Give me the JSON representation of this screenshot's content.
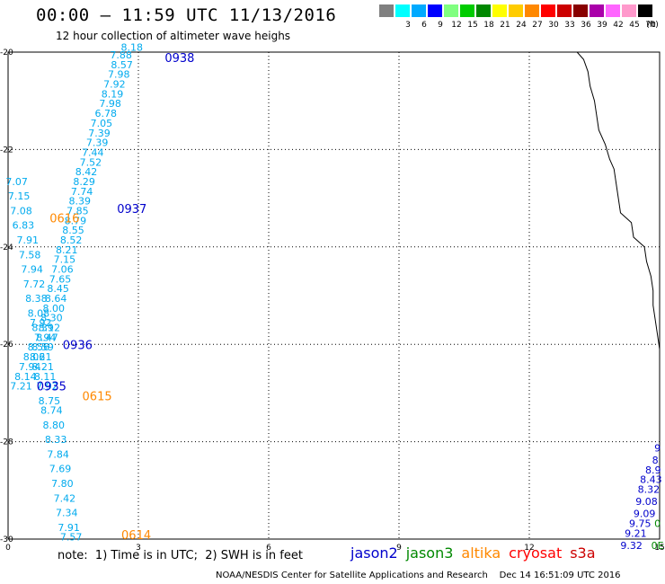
{
  "title": "00:00 — 11:59 UTC 11/13/2016",
  "subtitle": "12 hour collection of altimeter wave heighs",
  "scale": {
    "colors": [
      "#808080",
      "#00ffff",
      "#00aaff",
      "#0000ff",
      "#80ff80",
      "#00cc00",
      "#008800",
      "#ffff00",
      "#ffcc00",
      "#ff8800",
      "#ff0000",
      "#cc0000",
      "#880000",
      "#aa00aa",
      "#ff66ff",
      "#ff99cc",
      "#000000"
    ],
    "labels": [
      "",
      "3",
      "6",
      "9",
      "12",
      "15",
      "18",
      "21",
      "24",
      "27",
      "30",
      "33",
      "36",
      "39",
      "42",
      "45",
      "70"
    ],
    "unit": "(ft)"
  },
  "axes": {
    "x_ticks": [
      "0",
      "3",
      "6",
      "9",
      "12",
      "15"
    ],
    "y_ticks": [
      "-20",
      "-22",
      "-24",
      "-26",
      "-28",
      "-30"
    ]
  },
  "colors": {
    "jason2": "#0000cc",
    "jason3": "#008800",
    "altika": "#ff8800",
    "cryosat": "#ff0000",
    "s3a": "#cc0000",
    "swh": "#00aaee"
  },
  "swh_values": [
    {
      "x": 2.85,
      "y": -19.97,
      "v": "8.18"
    },
    {
      "x": 2.6,
      "y": -20.13,
      "v": "7.88"
    },
    {
      "x": 2.62,
      "y": -20.33,
      "v": "8.57"
    },
    {
      "x": 2.55,
      "y": -20.53,
      "v": "7.98"
    },
    {
      "x": 2.45,
      "y": -20.73,
      "v": "7.92"
    },
    {
      "x": 2.4,
      "y": -20.93,
      "v": "8.19"
    },
    {
      "x": 2.35,
      "y": -21.13,
      "v": "7.98"
    },
    {
      "x": 2.25,
      "y": -21.33,
      "v": "6.78"
    },
    {
      "x": 2.15,
      "y": -21.53,
      "v": "7.05"
    },
    {
      "x": 2.1,
      "y": -21.73,
      "v": "7.39"
    },
    {
      "x": 2.05,
      "y": -21.93,
      "v": "7.39"
    },
    {
      "x": 1.95,
      "y": -22.13,
      "v": "7.44"
    },
    {
      "x": 1.9,
      "y": -22.33,
      "v": "7.52"
    },
    {
      "x": 1.8,
      "y": -22.53,
      "v": "8.42"
    },
    {
      "x": 1.75,
      "y": -22.73,
      "v": "8.29"
    },
    {
      "x": 1.7,
      "y": -22.93,
      "v": "7.74"
    },
    {
      "x": 1.65,
      "y": -23.13,
      "v": "8.39"
    },
    {
      "x": 1.6,
      "y": -23.33,
      "v": "7.85"
    },
    {
      "x": 1.55,
      "y": -23.53,
      "v": "8.79"
    },
    {
      "x": 1.5,
      "y": -23.73,
      "v": "8.55"
    },
    {
      "x": 1.45,
      "y": -23.93,
      "v": "8.52"
    },
    {
      "x": 1.35,
      "y": -24.13,
      "v": "8.21"
    },
    {
      "x": 1.3,
      "y": -24.33,
      "v": "7.15"
    },
    {
      "x": 1.25,
      "y": -24.53,
      "v": "7.06"
    },
    {
      "x": 1.2,
      "y": -24.73,
      "v": "7.65"
    },
    {
      "x": 1.15,
      "y": -24.93,
      "v": "8.45"
    },
    {
      "x": 1.1,
      "y": -25.13,
      "v": "8.64"
    },
    {
      "x": 1.05,
      "y": -25.33,
      "v": "8.00"
    },
    {
      "x": 1.0,
      "y": -25.53,
      "v": "8.30"
    },
    {
      "x": 0.95,
      "y": -25.73,
      "v": "8.12"
    },
    {
      "x": 0.9,
      "y": -25.93,
      "v": "8.47"
    },
    {
      "x": 0.8,
      "y": -26.13,
      "v": "8.59"
    },
    {
      "x": 0.75,
      "y": -26.33,
      "v": "8.21"
    },
    {
      "x": 0.8,
      "y": -26.53,
      "v": "8.21"
    },
    {
      "x": 0.85,
      "y": -26.73,
      "v": "8.11"
    },
    {
      "x": 0.9,
      "y": -26.93,
      "v": "7.92"
    },
    {
      "x": 0.95,
      "y": -27.23,
      "v": "8.75"
    },
    {
      "x": 1.0,
      "y": -27.43,
      "v": "8.74"
    },
    {
      "x": 1.05,
      "y": -27.73,
      "v": "8.80"
    },
    {
      "x": 1.1,
      "y": -28.03,
      "v": "8.33"
    },
    {
      "x": 1.15,
      "y": -28.33,
      "v": "7.84"
    },
    {
      "x": 1.2,
      "y": -28.63,
      "v": "7.69"
    },
    {
      "x": 1.25,
      "y": -28.93,
      "v": "7.80"
    },
    {
      "x": 1.3,
      "y": -29.23,
      "v": "7.42"
    },
    {
      "x": 1.35,
      "y": -29.53,
      "v": "7.34"
    },
    {
      "x": 1.4,
      "y": -29.83,
      "v": "7.91"
    },
    {
      "x": 1.45,
      "y": -30.03,
      "v": "7.57"
    },
    {
      "x": 0.2,
      "y": -22.73,
      "v": "7.07"
    },
    {
      "x": 0.25,
      "y": -23.03,
      "v": "7.15"
    },
    {
      "x": 0.3,
      "y": -23.33,
      "v": "7.08"
    },
    {
      "x": 0.35,
      "y": -23.63,
      "v": "6.83"
    },
    {
      "x": 0.45,
      "y": -23.93,
      "v": "7.91"
    },
    {
      "x": 0.5,
      "y": -24.23,
      "v": "7.58"
    },
    {
      "x": 0.55,
      "y": -24.53,
      "v": "7.94"
    },
    {
      "x": 0.6,
      "y": -24.83,
      "v": "7.72"
    },
    {
      "x": 0.65,
      "y": -25.13,
      "v": "8.38"
    },
    {
      "x": 0.7,
      "y": -25.43,
      "v": "8.08"
    },
    {
      "x": 0.75,
      "y": -25.63,
      "v": "7.92"
    },
    {
      "x": 0.8,
      "y": -25.73,
      "v": "8.39"
    },
    {
      "x": 0.85,
      "y": -25.93,
      "v": "7.94"
    },
    {
      "x": 0.7,
      "y": -26.13,
      "v": "8.56"
    },
    {
      "x": 0.6,
      "y": -26.33,
      "v": "8.06"
    },
    {
      "x": 0.5,
      "y": -26.53,
      "v": "7.94"
    },
    {
      "x": 0.4,
      "y": -26.73,
      "v": "8.14"
    },
    {
      "x": 0.3,
      "y": -26.93,
      "v": "7.21"
    }
  ],
  "time_labels": [
    {
      "x": 3.95,
      "y": -20.2,
      "t": "0938",
      "sat": "jason2"
    },
    {
      "x": 2.85,
      "y": -23.3,
      "t": "0937",
      "sat": "jason2"
    },
    {
      "x": 1.3,
      "y": -23.5,
      "t": "0616",
      "sat": "altika"
    },
    {
      "x": 1.6,
      "y": -26.1,
      "t": "0936",
      "sat": "jason2"
    },
    {
      "x": 1.0,
      "y": -26.95,
      "t": "0935",
      "sat": "jason2"
    },
    {
      "x": 2.05,
      "y": -27.15,
      "t": "0615",
      "sat": "altika"
    },
    {
      "x": 2.95,
      "y": -30.0,
      "t": "0614",
      "sat": "altika"
    }
  ],
  "east_values": [
    {
      "x": 14.95,
      "y": -28.2,
      "v": "9",
      "sat": "jason2"
    },
    {
      "x": 14.9,
      "y": -28.45,
      "v": "8",
      "sat": "jason2"
    },
    {
      "x": 14.85,
      "y": -28.65,
      "v": "8.9",
      "sat": "jason2"
    },
    {
      "x": 14.8,
      "y": -28.85,
      "v": "8.43",
      "sat": "jason2"
    },
    {
      "x": 14.75,
      "y": -29.05,
      "v": "8.32",
      "sat": "jason2"
    },
    {
      "x": 14.7,
      "y": -29.3,
      "v": "9.08",
      "sat": "jason2"
    },
    {
      "x": 14.65,
      "y": -29.55,
      "v": "9.09",
      "sat": "jason2"
    },
    {
      "x": 14.55,
      "y": -29.75,
      "v": "9.75",
      "sat": "jason2"
    },
    {
      "x": 14.45,
      "y": -29.95,
      "v": "9.21",
      "sat": "jason2"
    },
    {
      "x": 14.35,
      "y": -30.2,
      "v": "9.32",
      "sat": "jason2"
    },
    {
      "x": 14.95,
      "y": -29.75,
      "v": "0",
      "sat": "jason3"
    },
    {
      "x": 14.95,
      "y": -30.2,
      "v": "0E",
      "sat": "jason3"
    }
  ],
  "coastline": [
    [
      13.1,
      -20.0
    ],
    [
      13.25,
      -20.15
    ],
    [
      13.35,
      -20.4
    ],
    [
      13.4,
      -20.7
    ],
    [
      13.5,
      -21.0
    ],
    [
      13.55,
      -21.3
    ],
    [
      13.6,
      -21.6
    ],
    [
      13.75,
      -21.9
    ],
    [
      13.85,
      -22.2
    ],
    [
      13.95,
      -22.4
    ],
    [
      14.0,
      -22.7
    ],
    [
      14.05,
      -23.0
    ],
    [
      14.1,
      -23.3
    ],
    [
      14.35,
      -23.5
    ],
    [
      14.4,
      -23.8
    ],
    [
      14.65,
      -24.0
    ],
    [
      14.7,
      -24.3
    ],
    [
      14.8,
      -24.6
    ],
    [
      14.85,
      -24.9
    ],
    [
      14.85,
      -25.2
    ],
    [
      14.9,
      -25.5
    ],
    [
      14.95,
      -25.8
    ],
    [
      15.0,
      -26.1
    ],
    [
      15.0,
      -26.3
    ]
  ],
  "note": "note:  1) Time is in UTC;  2) SWH is in feet",
  "legend": [
    {
      "label": "jason2",
      "sat": "jason2"
    },
    {
      "label": "jason3",
      "sat": "jason3"
    },
    {
      "label": "altika",
      "sat": "altika"
    },
    {
      "label": "cryosat",
      "sat": "cryosat"
    },
    {
      "label": "s3a",
      "sat": "s3a"
    }
  ],
  "footer": "NOAA/NESDIS Center for Satellite Applications and Research    Dec 14 16:51:09 UTC 2016"
}
